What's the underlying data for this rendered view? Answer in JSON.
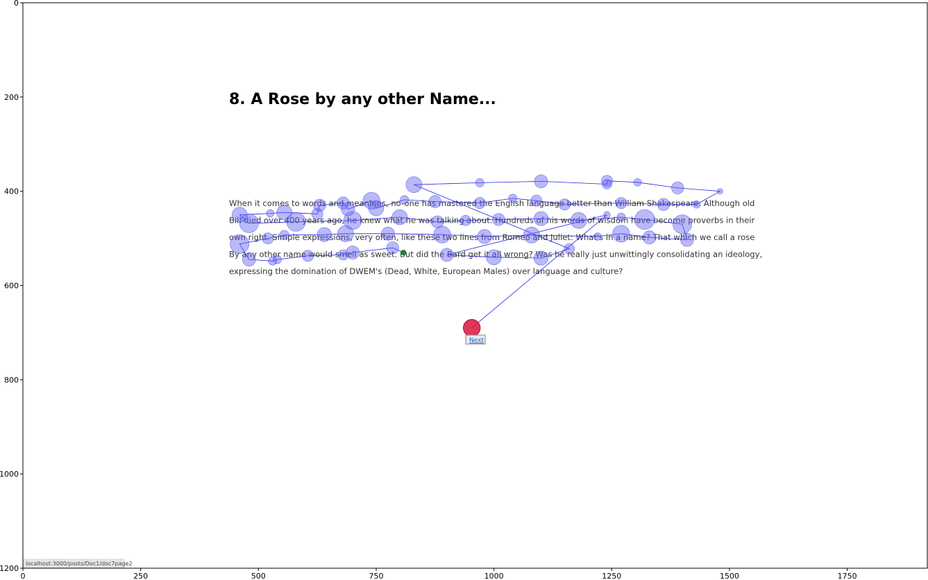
{
  "chart_data": {
    "type": "scatter",
    "title": "",
    "xlabel": "",
    "ylabel": "",
    "xlim": [
      0,
      1920
    ],
    "ylim": [
      1200,
      0
    ],
    "xticks": [
      0,
      250,
      500,
      750,
      1000,
      1250,
      1500,
      1750
    ],
    "yticks": [
      0,
      200,
      400,
      600,
      800,
      1000,
      1200
    ],
    "background_page": {
      "heading": "8. A Rose by any other Name...",
      "paragraph_lines": [
        "When it comes to words and meanings, no-one has mastered the English language better than William Shakespeare. Although old",
        "Bill died over 400 years ago, he knew what he was talking about. Hundreds of his words of wisdom have become proverbs in their",
        "own right. Simple expressions, very often, like these two lines from Romeo and Juliet: What's in a name? That which we call a rose",
        "By any other name would smell as sweet. But did the Bard get it all wrong? Was he really just unwittingly consolidating an ideology,",
        "expressing the domination of DWEM's (Dead, White, European Males) over language and culture?"
      ],
      "next_link": "Next",
      "status_url": "localhost:3000/posts/Doc1/doc7page2"
    },
    "fixations": [
      {
        "x": 808,
        "y": 530,
        "r": 5
      },
      {
        "x": 785,
        "y": 520,
        "r": 13
      },
      {
        "x": 700,
        "y": 530,
        "r": 14
      },
      {
        "x": 680,
        "y": 535,
        "r": 11
      },
      {
        "x": 605,
        "y": 537,
        "r": 12
      },
      {
        "x": 540,
        "y": 545,
        "r": 9
      },
      {
        "x": 530,
        "y": 548,
        "r": 9
      },
      {
        "x": 480,
        "y": 545,
        "r": 14
      },
      {
        "x": 460,
        "y": 512,
        "r": 20
      },
      {
        "x": 520,
        "y": 500,
        "r": 12
      },
      {
        "x": 555,
        "y": 493,
        "r": 10
      },
      {
        "x": 640,
        "y": 492,
        "r": 15
      },
      {
        "x": 685,
        "y": 490,
        "r": 17
      },
      {
        "x": 775,
        "y": 490,
        "r": 14
      },
      {
        "x": 890,
        "y": 492,
        "r": 18
      },
      {
        "x": 980,
        "y": 496,
        "r": 15
      },
      {
        "x": 1080,
        "y": 493,
        "r": 17
      },
      {
        "x": 1220,
        "y": 496,
        "r": 8
      },
      {
        "x": 1270,
        "y": 490,
        "r": 18
      },
      {
        "x": 1330,
        "y": 498,
        "r": 14
      },
      {
        "x": 1410,
        "y": 503,
        "r": 14
      },
      {
        "x": 1400,
        "y": 470,
        "r": 20
      },
      {
        "x": 1320,
        "y": 460,
        "r": 21
      },
      {
        "x": 1270,
        "y": 455,
        "r": 9
      },
      {
        "x": 1180,
        "y": 462,
        "r": 17
      },
      {
        "x": 1100,
        "y": 458,
        "r": 15
      },
      {
        "x": 1010,
        "y": 460,
        "r": 13
      },
      {
        "x": 940,
        "y": 462,
        "r": 11
      },
      {
        "x": 880,
        "y": 465,
        "r": 13
      },
      {
        "x": 800,
        "y": 455,
        "r": 16
      },
      {
        "x": 700,
        "y": 462,
        "r": 19
      },
      {
        "x": 580,
        "y": 465,
        "r": 20
      },
      {
        "x": 480,
        "y": 468,
        "r": 20
      },
      {
        "x": 460,
        "y": 450,
        "r": 16
      },
      {
        "x": 525,
        "y": 447,
        "r": 8
      },
      {
        "x": 555,
        "y": 445,
        "r": 16
      },
      {
        "x": 625,
        "y": 448,
        "r": 12
      },
      {
        "x": 630,
        "y": 430,
        "r": 13
      },
      {
        "x": 680,
        "y": 425,
        "r": 13
      },
      {
        "x": 690,
        "y": 438,
        "r": 14
      },
      {
        "x": 740,
        "y": 420,
        "r": 18
      },
      {
        "x": 750,
        "y": 436,
        "r": 16
      },
      {
        "x": 810,
        "y": 418,
        "r": 9
      },
      {
        "x": 875,
        "y": 422,
        "r": 13
      },
      {
        "x": 970,
        "y": 425,
        "r": 12
      },
      {
        "x": 1040,
        "y": 415,
        "r": 9
      },
      {
        "x": 1090,
        "y": 420,
        "r": 12
      },
      {
        "x": 1150,
        "y": 428,
        "r": 12
      },
      {
        "x": 1270,
        "y": 425,
        "r": 12
      },
      {
        "x": 1360,
        "y": 428,
        "r": 13
      },
      {
        "x": 1430,
        "y": 428,
        "r": 8
      },
      {
        "x": 1480,
        "y": 400,
        "r": 6
      },
      {
        "x": 1390,
        "y": 393,
        "r": 13
      },
      {
        "x": 1305,
        "y": 381,
        "r": 8
      },
      {
        "x": 1240,
        "y": 378,
        "r": 12
      },
      {
        "x": 1240,
        "y": 385,
        "r": 10
      },
      {
        "x": 1100,
        "y": 379,
        "r": 14
      },
      {
        "x": 970,
        "y": 382,
        "r": 9
      },
      {
        "x": 830,
        "y": 386,
        "r": 17
      },
      {
        "x": 1160,
        "y": 522,
        "r": 11
      },
      {
        "x": 1100,
        "y": 542,
        "r": 15
      },
      {
        "x": 1000,
        "y": 540,
        "r": 16
      },
      {
        "x": 900,
        "y": 535,
        "r": 14
      },
      {
        "x": 1240,
        "y": 450,
        "r": 7
      },
      {
        "x": 953,
        "y": 690,
        "r": 18
      }
    ],
    "start_point": {
      "x": 808,
      "y": 530
    },
    "end_point": {
      "x": 953,
      "y": 690
    }
  }
}
